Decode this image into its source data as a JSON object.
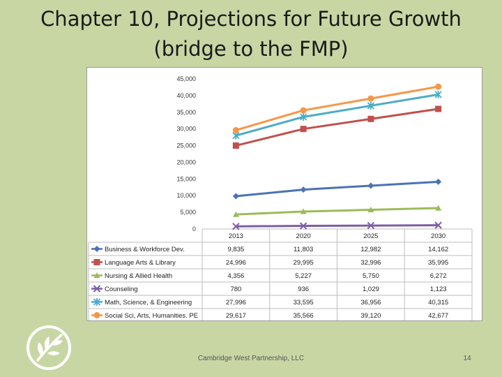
{
  "slide": {
    "title_line1": "Chapter 10, Projections for Future Growth",
    "title_line2": "(bridge to the FMP)",
    "footer": "Cambridge West Partnership, LLC",
    "page_number": "14",
    "logo_icon": "leaf-circle-icon"
  },
  "chart_data": {
    "type": "line",
    "title": "",
    "xlabel": "",
    "ylabel": "",
    "categories": [
      "2013",
      "2020",
      "2025",
      "2030"
    ],
    "ylim": [
      0,
      45000
    ],
    "ytick_step": 5000,
    "y_tick_labels": [
      "0",
      "5,000",
      "10,000",
      "15,000",
      "20,000",
      "25,000",
      "30,000",
      "35,000",
      "40,000",
      "45,000"
    ],
    "legend_position": "table-below",
    "series": [
      {
        "name": "Business & Workforce Dev.",
        "color": "#4a72b8",
        "marker": "diamond",
        "values": [
          9835,
          11803,
          12982,
          14162
        ],
        "labels": [
          "9,835",
          "11,803",
          "12,982",
          "14,162"
        ]
      },
      {
        "name": "Language Arts & Library",
        "color": "#c0504d",
        "marker": "square",
        "values": [
          24996,
          29995,
          32996,
          35995
        ],
        "labels": [
          "24,996",
          "29,995",
          "32,996",
          "35,995"
        ]
      },
      {
        "name": "Nursing & Allied Health",
        "color": "#9bbb59",
        "marker": "triangle",
        "values": [
          4356,
          5227,
          5750,
          6272
        ],
        "labels": [
          "4,356",
          "5,227",
          "5,750",
          "6,272"
        ]
      },
      {
        "name": "Counseling",
        "color": "#7d5ea3",
        "marker": "x",
        "values": [
          780,
          936,
          1029,
          1123
        ],
        "labels": [
          "780",
          "936",
          "1,029",
          "1,123"
        ]
      },
      {
        "name": "Math, Science, & Engineering",
        "color": "#4bacc6",
        "marker": "star",
        "values": [
          27996,
          33595,
          36956,
          40315
        ],
        "labels": [
          "27,996",
          "33,595",
          "36,956",
          "40,315"
        ]
      },
      {
        "name": "Social Sci, Arts, Humanities. PE",
        "color": "#f79646",
        "marker": "circle",
        "values": [
          29617,
          35566,
          39120,
          42677
        ],
        "labels": [
          "29,617",
          "35,566",
          "39,120",
          "42,677"
        ]
      }
    ]
  }
}
